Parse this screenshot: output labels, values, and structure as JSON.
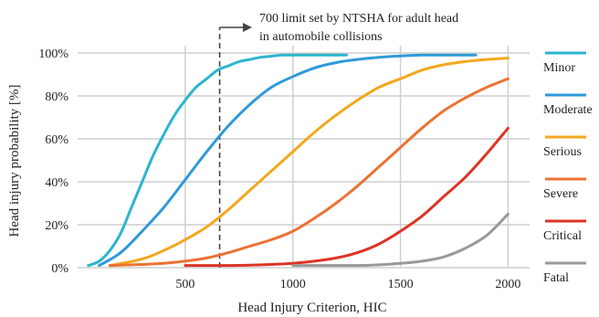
{
  "chart_data": {
    "type": "line",
    "title": "",
    "xlabel": "Head Injury Criterion, HIC",
    "ylabel": "Head injury probability [%]",
    "xlim": [
      0,
      2100
    ],
    "ylim": [
      0,
      100
    ],
    "xticks": [
      500,
      1000,
      1500,
      2000
    ],
    "yticks": [
      0,
      20,
      40,
      60,
      80,
      100
    ],
    "xtick_labels": [
      "500",
      "1000",
      "1500",
      "2000"
    ],
    "ytick_labels": [
      "0%",
      "20%",
      "40%",
      "60%",
      "80%",
      "100%"
    ],
    "grid": true,
    "legend_position": "right",
    "annotation": {
      "text_line1": "700 limit set by NTSHA for adult head",
      "text_line2": "in automobile collisions",
      "x": 660
    },
    "series": [
      {
        "name": "Minor",
        "color": "#2bb5cf",
        "x": [
          50,
          100,
          150,
          200,
          250,
          300,
          350,
          400,
          450,
          500,
          550,
          600,
          650,
          700,
          750,
          800,
          850,
          900,
          950,
          1000,
          1050,
          1100,
          1150,
          1200,
          1250
        ],
        "y": [
          1,
          3,
          8,
          16,
          28,
          40,
          52,
          62,
          71,
          78,
          84,
          88,
          92,
          94,
          96,
          97,
          98,
          98.5,
          99,
          99,
          99,
          99,
          99,
          99,
          99
        ]
      },
      {
        "name": "Moderate",
        "color": "#2f9ad9",
        "x": [
          100,
          200,
          300,
          400,
          500,
          600,
          700,
          800,
          900,
          1000,
          1100,
          1200,
          1300,
          1400,
          1500,
          1600,
          1700,
          1800,
          1850
        ],
        "y": [
          1,
          7,
          17,
          28,
          41,
          54,
          66,
          76,
          84,
          89,
          93,
          95.5,
          97,
          98,
          98.6,
          99,
          99,
          99,
          99
        ]
      },
      {
        "name": "Serious",
        "color": "#f2a81d",
        "x": [
          150,
          300,
          400,
          500,
          600,
          700,
          800,
          900,
          1000,
          1100,
          1200,
          1300,
          1400,
          1500,
          1600,
          1700,
          1800,
          1900,
          2000
        ],
        "y": [
          1,
          4,
          8,
          13,
          19,
          27,
          36,
          45,
          54,
          63,
          71,
          78,
          84,
          88,
          92,
          94.5,
          96,
          97,
          97.6
        ]
      },
      {
        "name": "Severe",
        "color": "#ec7232",
        "x": [
          150,
          300,
          400,
          500,
          600,
          700,
          800,
          900,
          1000,
          1100,
          1200,
          1300,
          1400,
          1500,
          1600,
          1700,
          1800,
          1900,
          2000
        ],
        "y": [
          1,
          1.5,
          2,
          3,
          4.5,
          7,
          10,
          13,
          17,
          23,
          30,
          38,
          47,
          56,
          65,
          73,
          79,
          84,
          88
        ]
      },
      {
        "name": "Critical",
        "color": "#dd3426",
        "x": [
          500,
          700,
          800,
          900,
          1000,
          1100,
          1200,
          1300,
          1400,
          1500,
          1600,
          1700,
          1800,
          1900,
          2000
        ],
        "y": [
          1,
          1,
          1.2,
          1.5,
          2,
          3,
          4.5,
          7,
          11,
          17,
          24,
          33,
          42,
          53,
          65
        ]
      },
      {
        "name": "Fatal",
        "color": "#999999",
        "x": [
          1000,
          1100,
          1200,
          1300,
          1400,
          1500,
          1600,
          1700,
          1800,
          1900,
          2000
        ],
        "y": [
          1,
          1,
          1,
          1,
          1.3,
          2,
          3,
          5,
          9,
          15,
          25
        ]
      }
    ]
  }
}
